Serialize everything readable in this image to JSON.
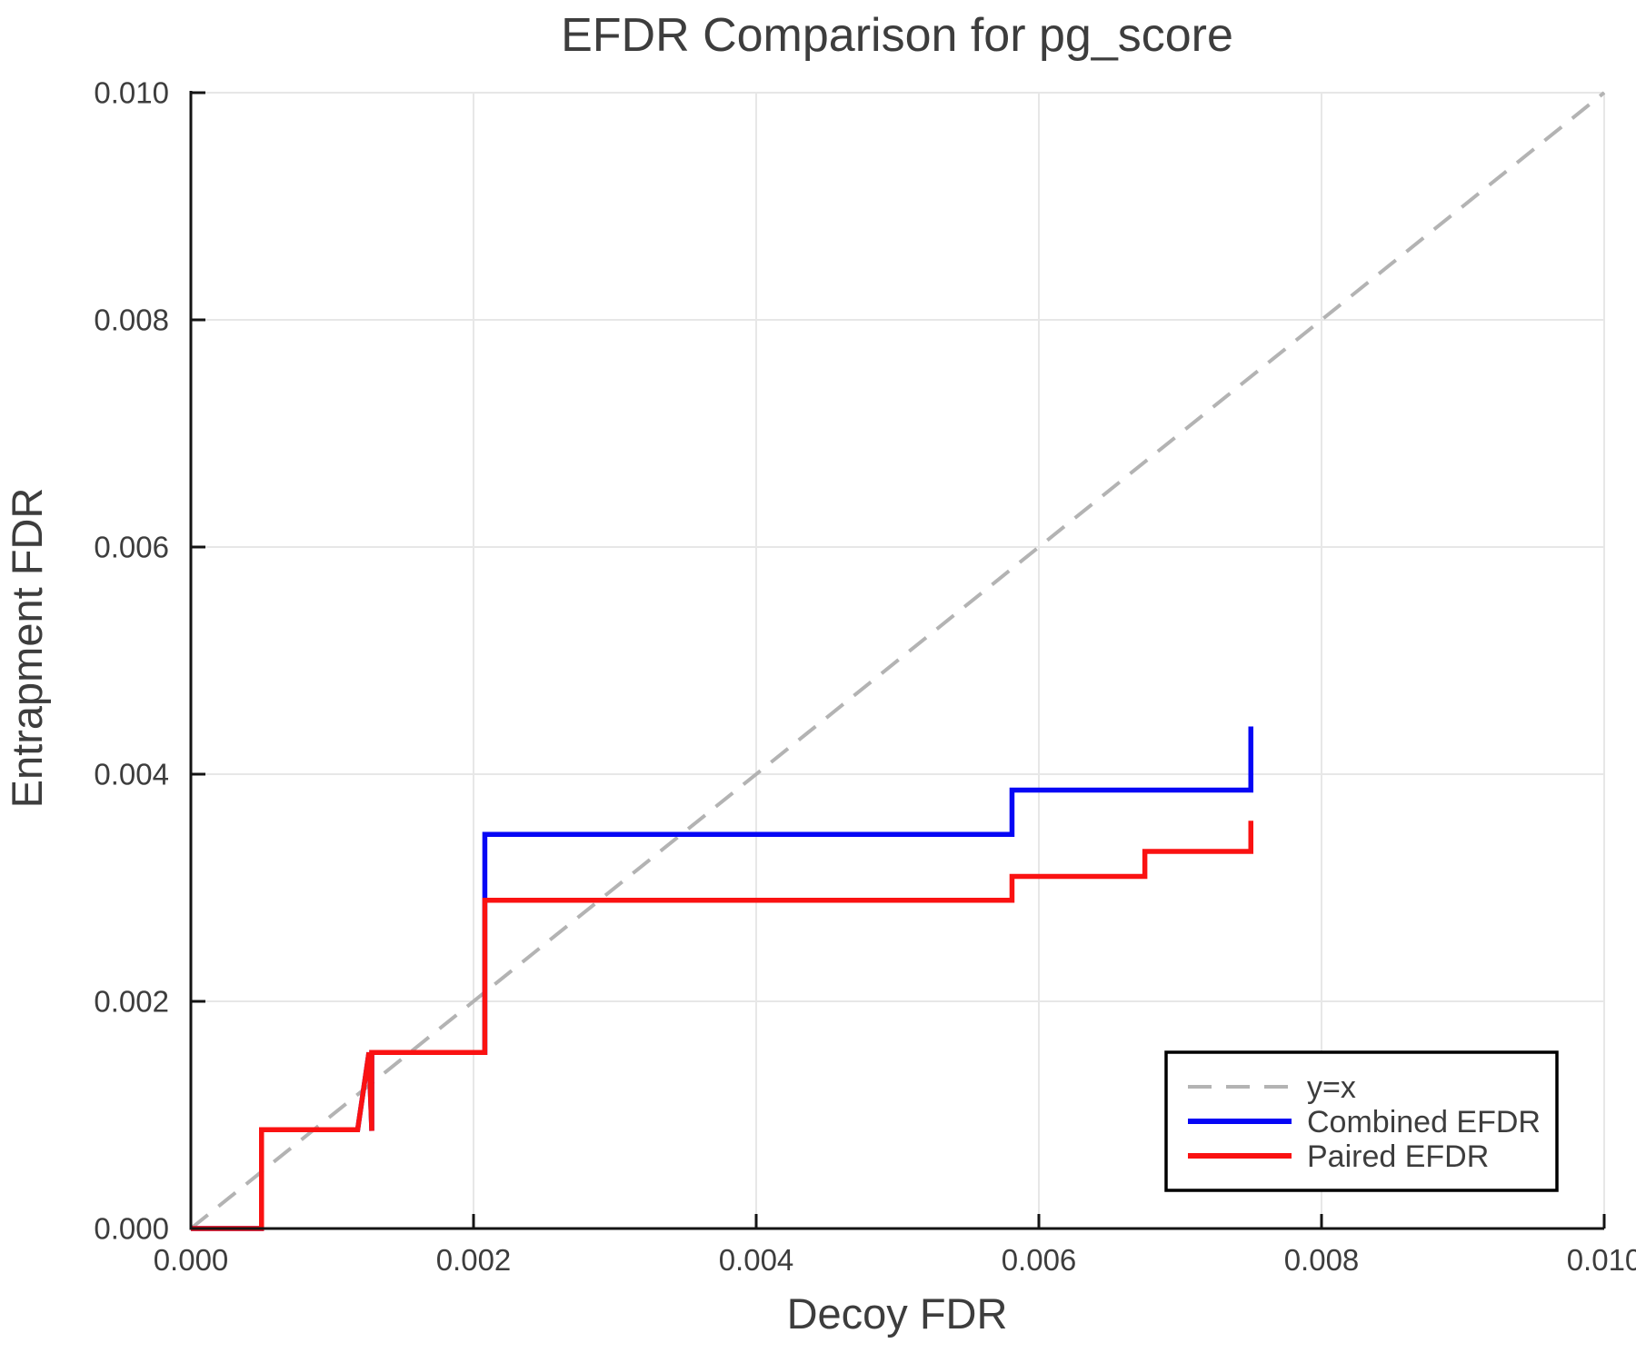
{
  "chart_data": {
    "type": "line",
    "title": "EFDR Comparison for pg_score",
    "xlabel": "Decoy FDR",
    "ylabel": "Entrapment FDR",
    "xlim": [
      0,
      0.01
    ],
    "ylim": [
      0,
      0.01
    ],
    "xticks": {
      "values": [
        0,
        0.002,
        0.004,
        0.006,
        0.008,
        0.01
      ],
      "labels": [
        "0.000",
        "0.002",
        "0.004",
        "0.006",
        "0.008",
        "0.010"
      ]
    },
    "yticks": {
      "values": [
        0,
        0.002,
        0.004,
        0.006,
        0.008,
        0.01
      ],
      "labels": [
        "0.000",
        "0.002",
        "0.004",
        "0.006",
        "0.008",
        "0.010"
      ]
    },
    "grid": true,
    "legend": {
      "position": "lower right",
      "entries": [
        "y=x",
        "Combined EFDR",
        "Paired EFDR"
      ]
    },
    "colors": {
      "diagonal": "#b3b3b3",
      "combined": "#0606f5",
      "paired": "#fa1212",
      "grid": "#e7e7e7",
      "spine": "#141414",
      "text": "#3d3d3d",
      "legend_border": "#000000",
      "background": "#ffffff"
    },
    "series": [
      {
        "name": "y=x",
        "style": "dashed",
        "color": "#b3b3b3",
        "points": [
          [
            0,
            0
          ],
          [
            0.01,
            0.01
          ]
        ]
      },
      {
        "name": "Combined EFDR",
        "style": "solid",
        "color": "#0606f5",
        "points": [
          [
            0,
            0
          ],
          [
            0.0005,
            0
          ],
          [
            0.0005,
            0.00087
          ],
          [
            0.00118,
            0.00087
          ],
          [
            0.00126,
            0.00155
          ],
          [
            0.00128,
            0.00086
          ],
          [
            0.00128,
            0.00155
          ],
          [
            0.00208,
            0.00155
          ],
          [
            0.00208,
            0.00347
          ],
          [
            0.00581,
            0.00347
          ],
          [
            0.00581,
            0.00386
          ],
          [
            0.0075,
            0.00386
          ],
          [
            0.0075,
            0.00442
          ]
        ]
      },
      {
        "name": "Paired EFDR",
        "style": "solid",
        "color": "#fa1212",
        "points": [
          [
            0,
            0
          ],
          [
            0.0005,
            0
          ],
          [
            0.0005,
            0.00087
          ],
          [
            0.00118,
            0.00087
          ],
          [
            0.00126,
            0.00155
          ],
          [
            0.00128,
            0.00086
          ],
          [
            0.00128,
            0.00155
          ],
          [
            0.00208,
            0.00155
          ],
          [
            0.00208,
            0.00289
          ],
          [
            0.00581,
            0.00289
          ],
          [
            0.00581,
            0.0031
          ],
          [
            0.00675,
            0.0031
          ],
          [
            0.00675,
            0.00332
          ],
          [
            0.0075,
            0.00332
          ],
          [
            0.0075,
            0.00359
          ]
        ]
      }
    ]
  }
}
